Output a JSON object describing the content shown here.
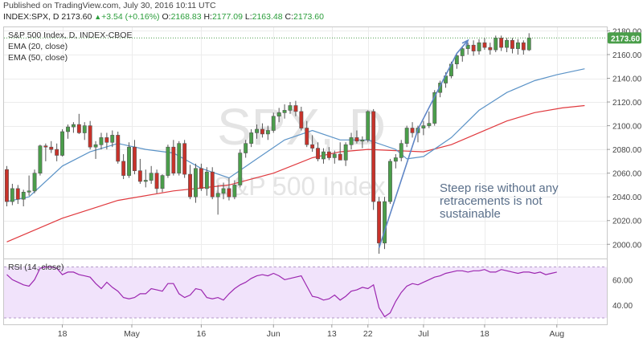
{
  "header": {
    "published": "Published on TradingView.com, July 30, 2016 10:11 UTC",
    "symbol": "INDEX:SPX, D",
    "last": "2173.60",
    "change": "+3.54 (+0.16%)",
    "open_label": "O:",
    "open": "2168.83",
    "high_label": "H:",
    "high": "2177.09",
    "low_label": "L:",
    "low": "2163.48",
    "close_label": "C:",
    "close": "2173.60"
  },
  "legend": {
    "title": "S&P 500 Index, D, INDEX-CBOE",
    "ema20": "EMA (20, close)",
    "ema50": "EMA (50, close)"
  },
  "watermark": {
    "symbol": "SPX, D",
    "name": "S&P 500 Index"
  },
  "annotation": {
    "lines": [
      "Steep rise without any",
      "retracements is not",
      "sustainable"
    ]
  },
  "price_tag": "2173.60",
  "colors": {
    "up": "#4a9e4a",
    "down": "#c8322a",
    "ema20": "#5b93c7",
    "ema50": "#e0393e",
    "rsi_line": "#9c27b0",
    "rsi_band": "#f1e3fb",
    "trendline": "#5f86c6",
    "annotation": "#5a6f8a",
    "price_tag_bg": "#4a9e4a"
  },
  "chart_data": {
    "type": "candlestick",
    "title": "S&P 500 Index, D, INDEX-CBOE",
    "x_tick_labels": [
      "18",
      "May",
      "16",
      "Jun",
      "13",
      "22",
      "Jul",
      "18",
      "Aug"
    ],
    "x_tick_index": [
      10,
      22.5,
      35,
      48,
      58.5,
      65,
      75,
      86,
      99
    ],
    "x_range": [
      -0.5,
      108
    ],
    "y_ticks": [
      2000,
      2020,
      2040,
      2060,
      2080,
      2100,
      2120,
      2140,
      2160,
      2180
    ],
    "y_range": [
      1988,
      2183
    ],
    "rsi_ticks": [
      40,
      60
    ],
    "rsi_range": [
      25,
      76
    ],
    "rsi_label": "RSI (14, close)",
    "candles": [
      [
        2063,
        2066,
        2032,
        2036
      ],
      [
        2036,
        2051,
        2033,
        2047
      ],
      [
        2047,
        2050,
        2034,
        2038
      ],
      [
        2038,
        2046,
        2032,
        2044
      ],
      [
        2044,
        2058,
        2041,
        2045
      ],
      [
        2045,
        2063,
        2043,
        2060
      ],
      [
        2060,
        2084,
        2058,
        2083
      ],
      [
        2083,
        2085,
        2070,
        2082
      ],
      [
        2082,
        2087,
        2077,
        2080
      ],
      [
        2080,
        2085,
        2070,
        2075
      ],
      [
        2075,
        2097,
        2074,
        2095
      ],
      [
        2095,
        2101,
        2089,
        2099
      ],
      [
        2099,
        2103,
        2094,
        2101
      ],
      [
        2101,
        2110,
        2093,
        2094
      ],
      [
        2094,
        2103,
        2088,
        2100
      ],
      [
        2100,
        2104,
        2080,
        2082
      ],
      [
        2082,
        2087,
        2072,
        2084
      ],
      [
        2084,
        2094,
        2080,
        2090
      ],
      [
        2090,
        2094,
        2080,
        2086
      ],
      [
        2086,
        2096,
        2082,
        2092
      ],
      [
        2092,
        2095,
        2068,
        2070
      ],
      [
        2070,
        2076,
        2055,
        2058
      ],
      [
        2058,
        2086,
        2056,
        2082
      ],
      [
        2082,
        2088,
        2059,
        2062
      ],
      [
        2062,
        2072,
        2051,
        2053
      ],
      [
        2053,
        2063,
        2048,
        2054
      ],
      [
        2054,
        2066,
        2051,
        2060
      ],
      [
        2060,
        2063,
        2043,
        2047
      ],
      [
        2047,
        2059,
        2044,
        2058
      ],
      [
        2058,
        2084,
        2056,
        2082
      ],
      [
        2082,
        2088,
        2058,
        2060
      ],
      [
        2060,
        2087,
        2058,
        2085
      ],
      [
        2085,
        2088,
        2056,
        2059
      ],
      [
        2059,
        2067,
        2038,
        2040
      ],
      [
        2040,
        2068,
        2035,
        2064
      ],
      [
        2064,
        2068,
        2045,
        2047
      ],
      [
        2047,
        2065,
        2041,
        2061
      ],
      [
        2061,
        2065,
        2038,
        2040
      ],
      [
        2040,
        2050,
        2025,
        2043
      ],
      [
        2043,
        2052,
        2038,
        2047
      ],
      [
        2047,
        2056,
        2037,
        2040
      ],
      [
        2040,
        2054,
        2038,
        2050
      ],
      [
        2050,
        2080,
        2048,
        2077
      ],
      [
        2077,
        2088,
        2073,
        2085
      ],
      [
        2085,
        2097,
        2082,
        2094
      ],
      [
        2094,
        2101,
        2089,
        2097
      ],
      [
        2097,
        2102,
        2090,
        2093
      ],
      [
        2093,
        2100,
        2088,
        2096
      ],
      [
        2096,
        2111,
        2094,
        2108
      ],
      [
        2108,
        2115,
        2103,
        2111
      ],
      [
        2111,
        2118,
        2106,
        2113
      ],
      [
        2113,
        2120,
        2110,
        2117
      ],
      [
        2117,
        2121,
        2108,
        2112
      ],
      [
        2112,
        2116,
        2096,
        2098
      ],
      [
        2098,
        2104,
        2082,
        2084
      ],
      [
        2084,
        2092,
        2078,
        2081
      ],
      [
        2081,
        2086,
        2070,
        2072
      ],
      [
        2072,
        2081,
        2068,
        2078
      ],
      [
        2078,
        2082,
        2071,
        2073
      ],
      [
        2073,
        2079,
        2068,
        2076
      ],
      [
        2076,
        2086,
        2072,
        2071
      ],
      [
        2071,
        2086,
        2066,
        2084
      ],
      [
        2084,
        2094,
        2080,
        2090
      ],
      [
        2090,
        2096,
        2085,
        2087
      ],
      [
        2087,
        2091,
        2081,
        2088
      ],
      [
        2088,
        2113,
        2086,
        2112
      ],
      [
        2112,
        2114,
        2029,
        2036
      ],
      [
        2036,
        2040,
        1992,
        2001
      ],
      [
        2001,
        2040,
        1996,
        2036
      ],
      [
        2036,
        2072,
        2034,
        2070
      ],
      [
        2070,
        2076,
        2064,
        2073
      ],
      [
        2073,
        2088,
        2070,
        2085
      ],
      [
        2085,
        2100,
        2082,
        2098
      ],
      [
        2098,
        2103,
        2090,
        2094
      ],
      [
        2094,
        2100,
        2086,
        2098
      ],
      [
        2098,
        2104,
        2092,
        2100
      ],
      [
        2100,
        2112,
        2098,
        2102
      ],
      [
        2102,
        2130,
        2100,
        2128
      ],
      [
        2128,
        2138,
        2124,
        2136
      ],
      [
        2136,
        2145,
        2132,
        2142
      ],
      [
        2142,
        2154,
        2140,
        2152
      ],
      [
        2152,
        2160,
        2148,
        2159
      ],
      [
        2159,
        2166,
        2154,
        2165
      ],
      [
        2165,
        2170,
        2160,
        2168
      ],
      [
        2168,
        2172,
        2159,
        2163
      ],
      [
        2163,
        2173,
        2160,
        2170
      ],
      [
        2170,
        2174,
        2164,
        2166
      ],
      [
        2166,
        2170,
        2160,
        2164
      ],
      [
        2164,
        2176,
        2162,
        2174
      ],
      [
        2174,
        2176,
        2163,
        2166
      ],
      [
        2166,
        2174,
        2162,
        2172
      ],
      [
        2172,
        2174,
        2161,
        2165
      ],
      [
        2165,
        2173,
        2160,
        2170
      ],
      [
        2170,
        2172,
        2160,
        2164
      ],
      [
        2164,
        2178,
        2163,
        2174
      ]
    ],
    "ema20": [
      [
        0,
        2036
      ],
      [
        4,
        2040
      ],
      [
        10,
        2066
      ],
      [
        15,
        2078
      ],
      [
        20,
        2085
      ],
      [
        25,
        2080
      ],
      [
        30,
        2077
      ],
      [
        35,
        2064
      ],
      [
        40,
        2056
      ],
      [
        45,
        2072
      ],
      [
        50,
        2088
      ],
      [
        55,
        2096
      ],
      [
        60,
        2088
      ],
      [
        65,
        2088
      ],
      [
        70,
        2080
      ],
      [
        72,
        2072
      ],
      [
        75,
        2074
      ],
      [
        80,
        2090
      ],
      [
        85,
        2113
      ],
      [
        90,
        2128
      ],
      [
        95,
        2138
      ],
      [
        99,
        2143
      ],
      [
        104,
        2148
      ]
    ],
    "ema50": [
      [
        0,
        2002
      ],
      [
        10,
        2022
      ],
      [
        20,
        2037
      ],
      [
        30,
        2045
      ],
      [
        40,
        2050
      ],
      [
        48,
        2060
      ],
      [
        55,
        2073
      ],
      [
        60,
        2078
      ],
      [
        65,
        2080
      ],
      [
        70,
        2079
      ],
      [
        75,
        2078
      ],
      [
        80,
        2084
      ],
      [
        85,
        2094
      ],
      [
        90,
        2104
      ],
      [
        95,
        2111
      ],
      [
        100,
        2115
      ],
      [
        104,
        2117
      ]
    ],
    "rsi": [
      [
        0,
        64
      ],
      [
        1,
        60
      ],
      [
        2,
        58
      ],
      [
        3,
        56
      ],
      [
        4,
        55
      ],
      [
        5,
        60
      ],
      [
        6,
        69
      ],
      [
        7,
        70
      ],
      [
        8,
        70
      ],
      [
        9,
        69
      ],
      [
        10,
        64
      ],
      [
        11,
        66
      ],
      [
        12,
        66
      ],
      [
        13,
        64
      ],
      [
        14,
        63
      ],
      [
        15,
        62
      ],
      [
        16,
        57
      ],
      [
        17,
        53
      ],
      [
        18,
        58
      ],
      [
        19,
        54
      ],
      [
        20,
        51
      ],
      [
        21,
        46
      ],
      [
        22,
        45
      ],
      [
        23,
        46
      ],
      [
        24,
        49
      ],
      [
        25,
        49
      ],
      [
        26,
        53
      ],
      [
        27,
        52
      ],
      [
        28,
        51
      ],
      [
        29,
        57
      ],
      [
        30,
        57
      ],
      [
        31,
        49
      ],
      [
        32,
        46
      ],
      [
        33,
        48
      ],
      [
        34,
        53
      ],
      [
        35,
        52
      ],
      [
        36,
        46
      ],
      [
        37,
        45
      ],
      [
        38,
        46
      ],
      [
        39,
        44
      ],
      [
        40,
        49
      ],
      [
        41,
        53
      ],
      [
        42,
        56
      ],
      [
        43,
        58
      ],
      [
        44,
        61
      ],
      [
        45,
        63
      ],
      [
        46,
        64
      ],
      [
        47,
        63
      ],
      [
        48,
        65
      ],
      [
        49,
        63
      ],
      [
        50,
        60
      ],
      [
        51,
        61
      ],
      [
        52,
        62
      ],
      [
        53,
        63
      ],
      [
        54,
        55
      ],
      [
        55,
        47
      ],
      [
        56,
        46
      ],
      [
        57,
        44
      ],
      [
        58,
        45
      ],
      [
        59,
        48
      ],
      [
        60,
        44
      ],
      [
        61,
        47
      ],
      [
        62,
        51
      ],
      [
        63,
        52
      ],
      [
        64,
        54
      ],
      [
        65,
        53
      ],
      [
        66,
        56
      ],
      [
        67,
        38
      ],
      [
        68,
        31
      ],
      [
        69,
        34
      ],
      [
        70,
        43
      ],
      [
        71,
        50
      ],
      [
        72,
        55
      ],
      [
        73,
        57
      ],
      [
        74,
        56
      ],
      [
        75,
        58
      ],
      [
        76,
        60
      ],
      [
        77,
        62
      ],
      [
        78,
        63
      ],
      [
        79,
        65
      ],
      [
        80,
        66
      ],
      [
        81,
        67
      ],
      [
        82,
        67
      ],
      [
        83,
        66
      ],
      [
        84,
        67
      ],
      [
        85,
        67
      ],
      [
        86,
        68
      ],
      [
        87,
        66
      ],
      [
        88,
        66
      ],
      [
        89,
        68
      ],
      [
        90,
        67
      ],
      [
        91,
        66
      ],
      [
        92,
        65
      ],
      [
        93,
        66
      ],
      [
        94,
        66
      ],
      [
        95,
        65
      ],
      [
        96,
        66
      ],
      [
        97,
        64
      ],
      [
        98,
        65
      ],
      [
        99,
        66
      ]
    ],
    "trendline": [
      [
        67,
        1997
      ],
      [
        74,
        2097
      ],
      [
        81,
        2161
      ],
      [
        83,
        2172
      ]
    ]
  }
}
